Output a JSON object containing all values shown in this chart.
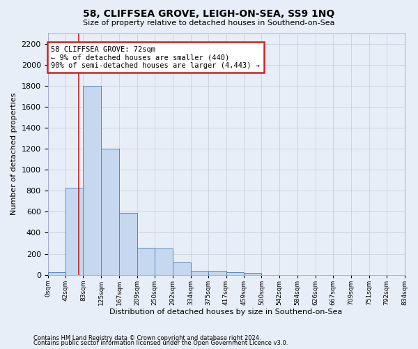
{
  "title": "58, CLIFFSEA GROVE, LEIGH-ON-SEA, SS9 1NQ",
  "subtitle": "Size of property relative to detached houses in Southend-on-Sea",
  "xlabel": "Distribution of detached houses by size in Southend-on-Sea",
  "ylabel": "Number of detached properties",
  "footnote1": "Contains HM Land Registry data © Crown copyright and database right 2024.",
  "footnote2": "Contains public sector information licensed under the Open Government Licence v3.0.",
  "bin_edges": [
    0,
    42,
    83,
    125,
    167,
    209,
    250,
    292,
    334,
    375,
    417,
    459,
    500,
    542,
    584,
    626,
    667,
    709,
    751,
    792,
    834
  ],
  "bin_labels": [
    "0sqm",
    "42sqm",
    "83sqm",
    "125sqm",
    "167sqm",
    "209sqm",
    "250sqm",
    "292sqm",
    "334sqm",
    "375sqm",
    "417sqm",
    "459sqm",
    "500sqm",
    "542sqm",
    "584sqm",
    "626sqm",
    "667sqm",
    "709sqm",
    "751sqm",
    "792sqm",
    "834sqm"
  ],
  "bar_values": [
    25,
    830,
    1800,
    1200,
    590,
    255,
    250,
    115,
    40,
    40,
    25,
    15,
    0,
    0,
    0,
    0,
    0,
    0,
    0,
    0
  ],
  "bar_color": "#c5d8f0",
  "bar_edge_color": "#5588bb",
  "grid_color": "#c8d0de",
  "property_size": 72,
  "annotation_title": "58 CLIFFSEA GROVE: 72sqm",
  "annotation_line1": "← 9% of detached houses are smaller (440)",
  "annotation_line2": "90% of semi-detached houses are larger (4,443) →",
  "vline_color": "#bb2222",
  "annotation_box_color": "#ffffff",
  "annotation_box_edge": "#cc2222",
  "ylim": [
    0,
    2300
  ],
  "yticks": [
    0,
    200,
    400,
    600,
    800,
    1000,
    1200,
    1400,
    1600,
    1800,
    2000,
    2200
  ],
  "bg_color": "#e8eef8",
  "plot_bg_color": "#e8eef8"
}
